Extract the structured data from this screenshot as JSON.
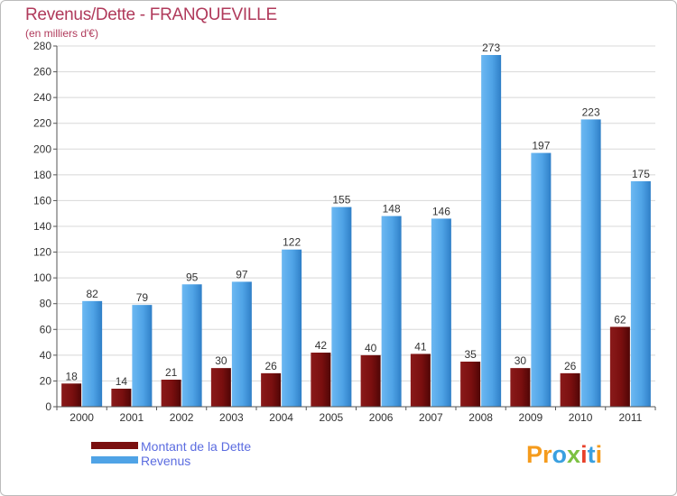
{
  "chart_data": {
    "type": "bar",
    "title": "Revenus/Dette - FRANQUEVILLE",
    "subtitle": "(en milliers d'€)",
    "categories": [
      "2000",
      "2001",
      "2002",
      "2003",
      "2004",
      "2005",
      "2006",
      "2007",
      "2008",
      "2009",
      "2010",
      "2011"
    ],
    "series": [
      {
        "name": "Montant de la Dette",
        "color": "#7a0f0f",
        "values": [
          18,
          14,
          21,
          30,
          26,
          42,
          40,
          41,
          35,
          30,
          26,
          62
        ]
      },
      {
        "name": "Revenus",
        "color": "#4fa3e6",
        "values": [
          82,
          79,
          95,
          97,
          122,
          155,
          148,
          146,
          273,
          197,
          223,
          175
        ]
      }
    ],
    "ylim": [
      0,
      280
    ],
    "yticks": [
      0,
      20,
      40,
      60,
      80,
      100,
      120,
      140,
      160,
      180,
      200,
      220,
      240,
      260,
      280
    ],
    "grid": true,
    "legend": "bottom-left"
  },
  "logo": {
    "text": "Proxiti",
    "letters": [
      {
        "ch": "P",
        "color": "#f59b1c"
      },
      {
        "ch": "r",
        "color": "#f59b1c"
      },
      {
        "ch": "o",
        "color": "#3aa0e0"
      },
      {
        "ch": "x",
        "color": "#7cc142"
      },
      {
        "ch": "i",
        "color": "#e8402a"
      },
      {
        "ch": "t",
        "color": "#3aa0e0"
      },
      {
        "ch": "i",
        "color": "#f59b1c"
      }
    ]
  }
}
